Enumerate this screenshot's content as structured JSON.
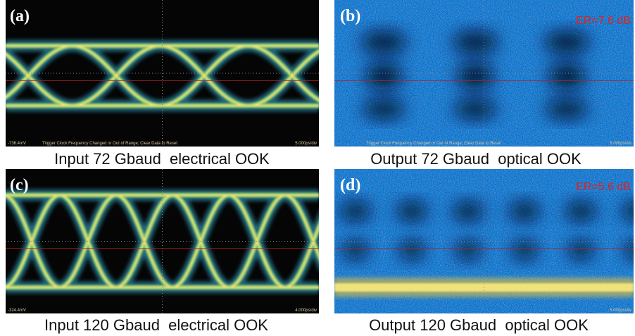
{
  "panels": [
    {
      "label": "(a)",
      "caption": "Input 72 Gbaud  electrical OOK",
      "scope_labels": [
        "-736.4mV",
        "Trigger Clock Frequency Changed or Out of Range; Clear Data to Reset",
        "5.000ps/div"
      ]
    },
    {
      "label": "(b)",
      "annotation": "ER=7.6 dB",
      "caption": "Output 72 Gbaud  optical OOK",
      "scope_labels": [
        "Trigger Clock Frequency Changed or Out of Range; Clear Data to Reset",
        "5.000ps/div"
      ]
    },
    {
      "label": "(c)",
      "caption": "Input 120 Gbaud  electrical OOK",
      "scope_labels": [
        "-324.4mV",
        "4.000ps/div"
      ]
    },
    {
      "label": "(d)",
      "annotation": "ER=5.6 dB",
      "caption": "Output 120 Gbaud  optical OOK",
      "scope_labels": [
        "5.000ps/div"
      ]
    }
  ]
}
